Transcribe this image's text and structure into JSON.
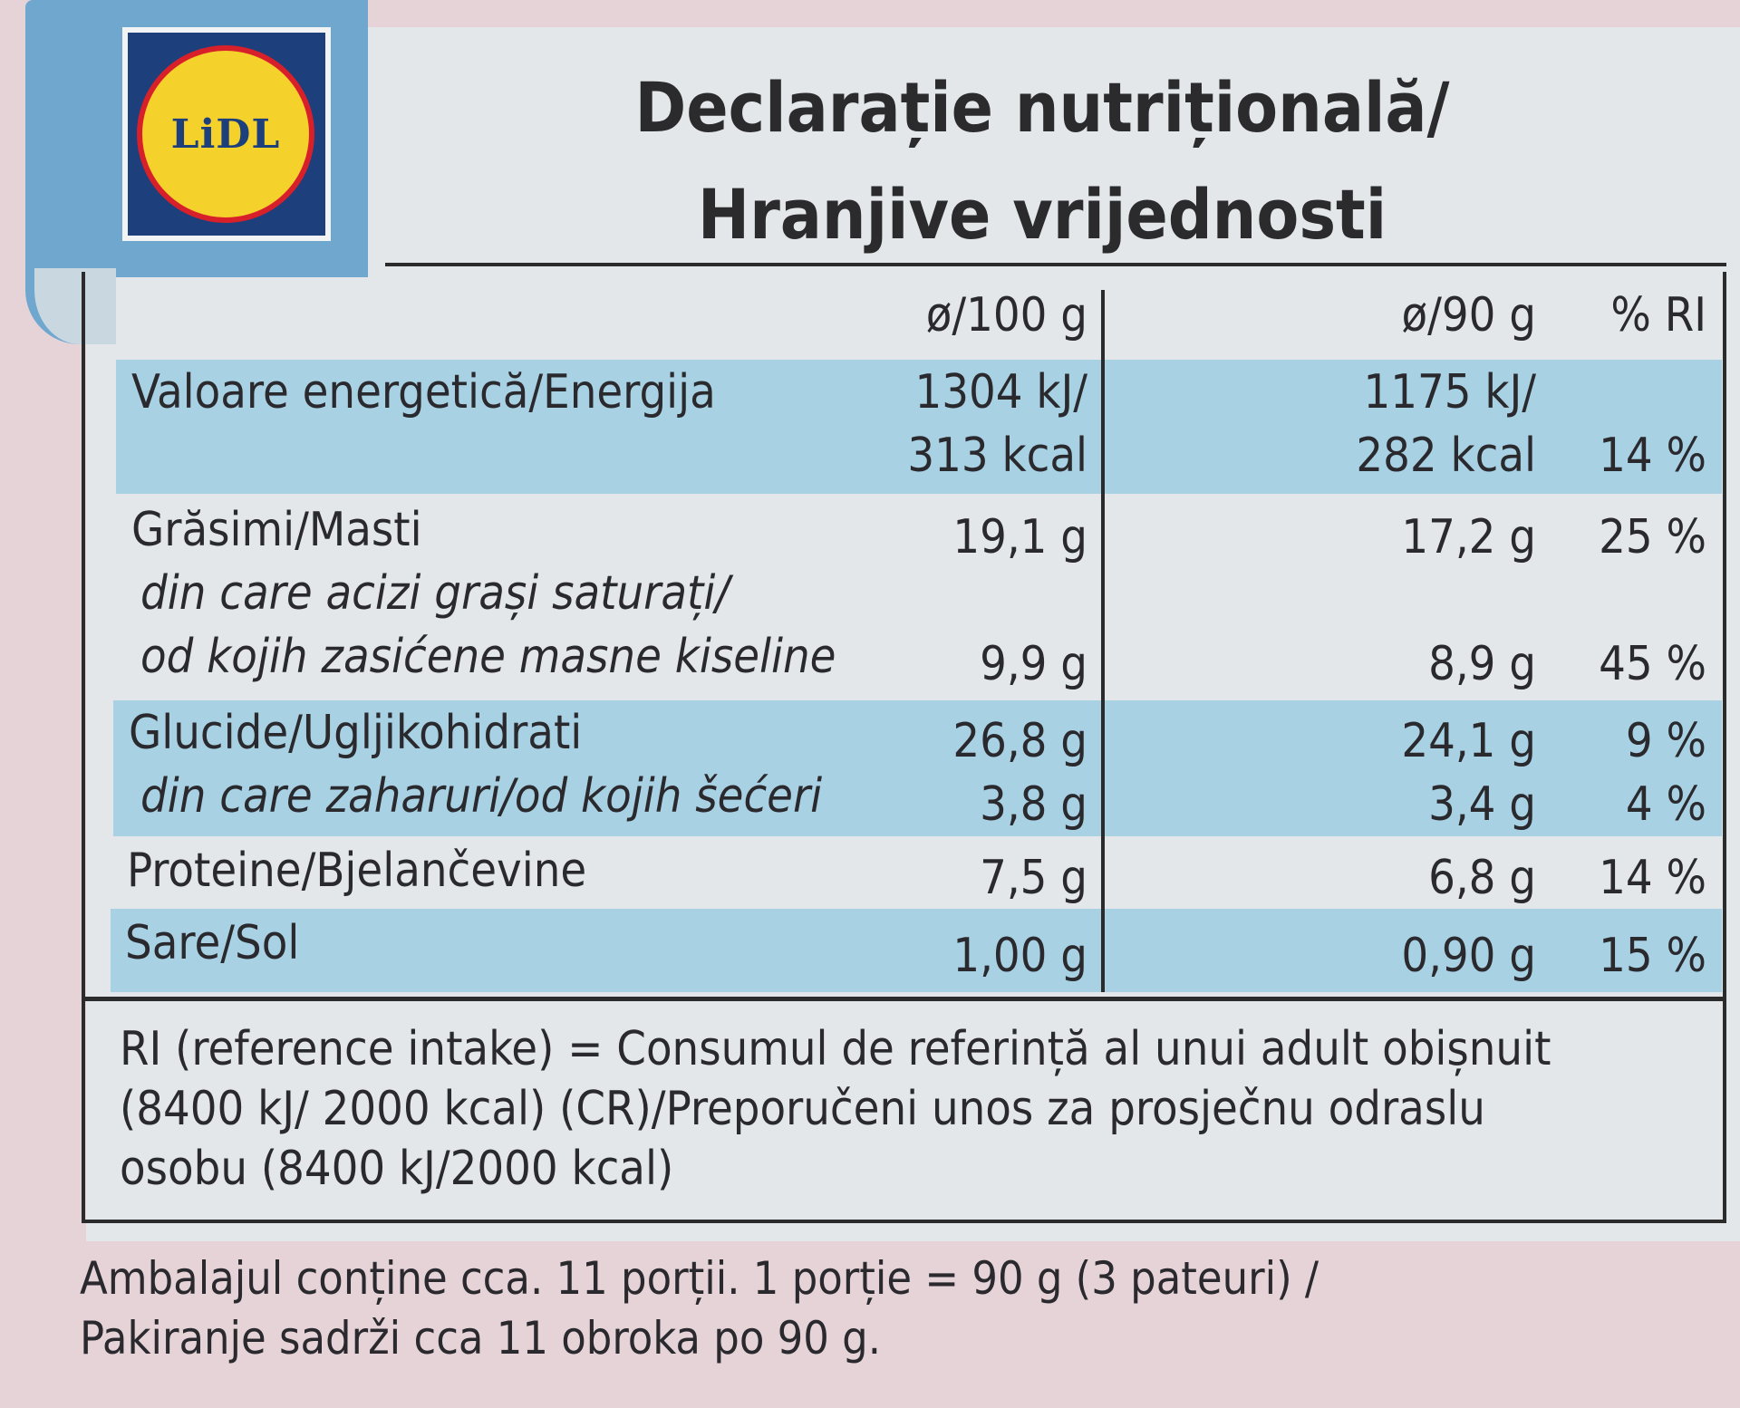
{
  "brand": {
    "logo_text": "LiDL"
  },
  "title": {
    "line1": "Declarație nutrițională/",
    "line2": "Hranjive vrijednosti"
  },
  "columns": {
    "per100": "ø/100 g",
    "per90": "ø/90 g",
    "ri": "% RI"
  },
  "rows": {
    "energy": {
      "label": "Valoare energetică/Energija",
      "per100_kj": "1304 kJ/",
      "per100_kcal": "313 kcal",
      "per90_kj": "1175 kJ/",
      "per90_kcal": "282 kcal",
      "ri": "14 %"
    },
    "fat": {
      "label": "Grăsimi/Masti",
      "per100": "19,1 g",
      "per90": "17,2 g",
      "ri": "25 %"
    },
    "saturates": {
      "label_line1": "din care acizi grași saturați/",
      "label_line2": "od kojih zasićene masne kiseline",
      "per100": "9,9 g",
      "per90": "8,9 g",
      "ri": "45 %"
    },
    "carbs": {
      "label": "Glucide/Ugljikohidrati",
      "per100": "26,8 g",
      "per90": "24,1 g",
      "ri": "9 %"
    },
    "sugars": {
      "label": "din care zaharuri/od kojih šećeri",
      "per100": "3,8 g",
      "per90": "3,4 g",
      "ri": "4 %"
    },
    "protein": {
      "label": "Proteine/Bjelančevine",
      "per100": "7,5 g",
      "per90": "6,8 g",
      "ri": "14 %"
    },
    "salt": {
      "label": "Sare/Sol",
      "per100": "1,00 g",
      "per90": "0,90 g",
      "ri": "15 %"
    }
  },
  "ri_note": {
    "line1": "RI (reference intake) = Consumul de referință al unui adult obișnuit",
    "line2": "(8400 kJ/ 2000 kcal) (CR)/Preporučeni unos za prosječnu odraslu",
    "line3": "osobu (8400 kJ/2000 kcal)"
  },
  "footer": {
    "line1": "Ambalajul conține cca. 11 porții. 1 porție = 90 g (3 pateuri) /",
    "line2": "Pakiranje sadrži cca 11 obroka po 90 g."
  },
  "colors": {
    "band": "#a9d1e4",
    "panel": "#e3e7ea",
    "ribbon": "#6fa7cf",
    "logo_blue": "#1d3f7c",
    "logo_yellow": "#f5d12c",
    "logo_red": "#d7202a"
  }
}
